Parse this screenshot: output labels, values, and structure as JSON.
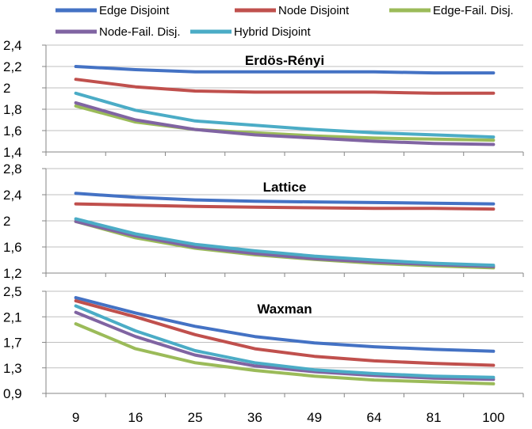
{
  "legend": [
    {
      "name": "Edge Disjoint",
      "color": "#4472C4"
    },
    {
      "name": "Node Disjoint",
      "color": "#C0504D"
    },
    {
      "name": "Edge-Fail. Disj.",
      "color": "#9BBB59"
    },
    {
      "name": "Node-Fail. Disj.",
      "color": "#8064A2"
    },
    {
      "name": "Hybrid Disjoint",
      "color": "#4BACC6"
    }
  ],
  "chart_data": [
    {
      "type": "line",
      "title": "Erdös-Rényi",
      "categories": [
        "9",
        "16",
        "25",
        "36",
        "49",
        "64",
        "81",
        "100"
      ],
      "yticks": [
        "1,4",
        "1,6",
        "1,8",
        "2",
        "2,2",
        "2,4"
      ],
      "ylim": [
        1.4,
        2.4
      ],
      "grid": true,
      "series": [
        {
          "name": "Edge Disjoint",
          "color": "#4472C4",
          "values": [
            2.2,
            2.17,
            2.15,
            2.15,
            2.15,
            2.15,
            2.14,
            2.14
          ]
        },
        {
          "name": "Node Disjoint",
          "color": "#C0504D",
          "values": [
            2.08,
            2.01,
            1.97,
            1.96,
            1.96,
            1.96,
            1.95,
            1.95
          ]
        },
        {
          "name": "Edge-Fail. Disj.",
          "color": "#9BBB59",
          "values": [
            1.83,
            1.68,
            1.61,
            1.58,
            1.55,
            1.53,
            1.52,
            1.51
          ]
        },
        {
          "name": "Node-Fail. Disj.",
          "color": "#8064A2",
          "values": [
            1.86,
            1.7,
            1.61,
            1.56,
            1.53,
            1.5,
            1.48,
            1.47
          ]
        },
        {
          "name": "Hybrid Disjoint",
          "color": "#4BACC6",
          "values": [
            1.95,
            1.79,
            1.69,
            1.65,
            1.61,
            1.58,
            1.56,
            1.54
          ]
        }
      ]
    },
    {
      "type": "line",
      "title": "Lattice",
      "categories": [
        "9",
        "16",
        "25",
        "36",
        "49",
        "64",
        "81",
        "100"
      ],
      "yticks": [
        "1,2",
        "1,6",
        "2",
        "2,4",
        "2,8"
      ],
      "ylim": [
        1.2,
        2.8
      ],
      "grid": true,
      "series": [
        {
          "name": "Edge Disjoint",
          "color": "#4472C4",
          "values": [
            2.42,
            2.36,
            2.32,
            2.3,
            2.29,
            2.28,
            2.27,
            2.26
          ]
        },
        {
          "name": "Node Disjoint",
          "color": "#C0504D",
          "values": [
            2.26,
            2.24,
            2.22,
            2.21,
            2.2,
            2.19,
            2.19,
            2.18
          ]
        },
        {
          "name": "Edge-Fail. Disj.",
          "color": "#9BBB59",
          "values": [
            1.99,
            1.74,
            1.58,
            1.48,
            1.41,
            1.35,
            1.31,
            1.28
          ]
        },
        {
          "name": "Node-Fail. Disj.",
          "color": "#8064A2",
          "values": [
            1.99,
            1.77,
            1.6,
            1.5,
            1.42,
            1.37,
            1.33,
            1.3
          ]
        },
        {
          "name": "Hybrid Disjoint",
          "color": "#4BACC6",
          "values": [
            2.03,
            1.8,
            1.64,
            1.54,
            1.46,
            1.4,
            1.35,
            1.32
          ]
        }
      ]
    },
    {
      "type": "line",
      "title": "Waxman",
      "categories": [
        "9",
        "16",
        "25",
        "36",
        "49",
        "64",
        "81",
        "100"
      ],
      "xticks": [
        "9",
        "16",
        "25",
        "36",
        "49",
        "64",
        "81",
        "100"
      ],
      "yticks": [
        "0,9",
        "1,3",
        "1,7",
        "2,1",
        "2,5"
      ],
      "ylim": [
        0.9,
        2.5
      ],
      "grid": true,
      "series": [
        {
          "name": "Edge Disjoint",
          "color": "#4472C4",
          "values": [
            2.4,
            2.16,
            1.95,
            1.79,
            1.69,
            1.63,
            1.59,
            1.56
          ]
        },
        {
          "name": "Node Disjoint",
          "color": "#C0504D",
          "values": [
            2.35,
            2.1,
            1.82,
            1.6,
            1.48,
            1.41,
            1.37,
            1.34
          ]
        },
        {
          "name": "Edge-Fail. Disj.",
          "color": "#9BBB59",
          "values": [
            1.99,
            1.6,
            1.38,
            1.26,
            1.17,
            1.11,
            1.08,
            1.05
          ]
        },
        {
          "name": "Node-Fail. Disj.",
          "color": "#8064A2",
          "values": [
            2.17,
            1.79,
            1.5,
            1.33,
            1.24,
            1.18,
            1.14,
            1.12
          ]
        },
        {
          "name": "Hybrid Disjoint",
          "color": "#4BACC6",
          "values": [
            2.27,
            1.88,
            1.57,
            1.38,
            1.27,
            1.21,
            1.17,
            1.15
          ]
        }
      ]
    }
  ]
}
